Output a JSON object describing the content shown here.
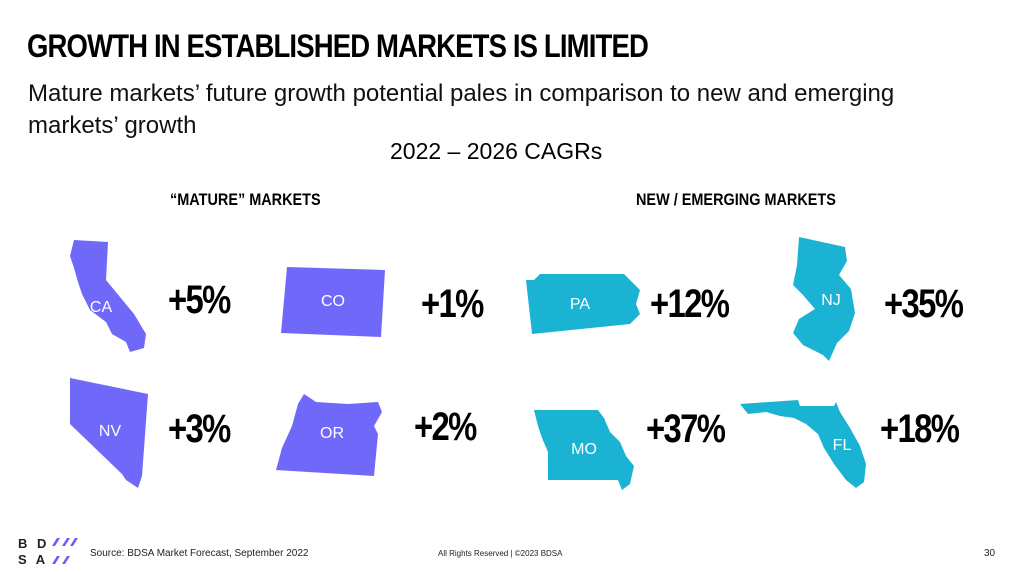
{
  "header": {
    "title": "GROWTH IN ESTABLISHED MARKETS IS LIMITED",
    "subtitle": "Mature markets’ future growth potential pales in comparison to new and emerging markets’ growth",
    "cagr_title": "2022 – 2026 CAGRs"
  },
  "groups": {
    "mature_label": "“MATURE” MARKETS",
    "emerging_label": "NEW / EMERGING MARKETS"
  },
  "colors": {
    "mature": "#7068f8",
    "emerging": "#1bb3d3",
    "logo_accent": "#6b5cf6"
  },
  "states": {
    "ca": {
      "code": "CA",
      "growth": "+5%"
    },
    "co": {
      "code": "CO",
      "growth": "+1%"
    },
    "nv": {
      "code": "NV",
      "growth": "+3%"
    },
    "or": {
      "code": "OR",
      "growth": "+2%"
    },
    "pa": {
      "code": "PA",
      "growth": "+12%"
    },
    "nj": {
      "code": "NJ",
      "growth": "+35%"
    },
    "mo": {
      "code": "MO",
      "growth": "+37%"
    },
    "fl": {
      "code": "FL",
      "growth": "+18%"
    }
  },
  "footer": {
    "logo_top": "B D",
    "logo_bottom": "S A",
    "source": "Source: BDSA Market Forecast, September 2022",
    "rights": "All Rights Reserved | ©2023 BDSA",
    "page_number": "30"
  }
}
